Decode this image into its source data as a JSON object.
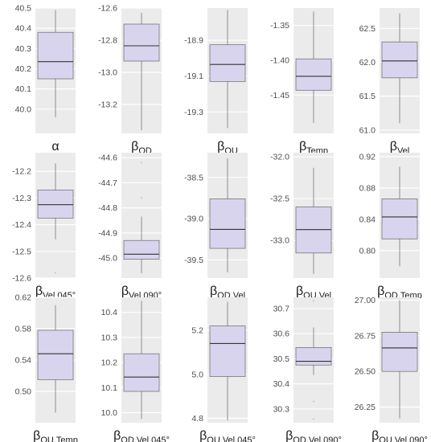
{
  "style": {
    "panel_bg": "#ebebeb",
    "grid_color": "#ffffff",
    "box_fill": "#d9d4ee",
    "box_stroke": "#666666",
    "whisker": "#777777",
    "tick_text": "#4d4d4d",
    "label_text": "#1a1a1a"
  },
  "chart_data": [
    {
      "type": "box",
      "label_main": "α",
      "label_sub": "",
      "ylim": [
        39.88,
        40.5
      ],
      "ticks": [
        40.0,
        40.1,
        40.2,
        40.3,
        40.4,
        40.5
      ],
      "tick_labels": [
        "40.0",
        "40.1",
        "40.2",
        "40.3",
        "40.4",
        "40.5"
      ],
      "stats": {
        "min": 39.96,
        "q1": 40.15,
        "median": 40.235,
        "q3": 40.38,
        "max": 40.49
      }
    },
    {
      "type": "box",
      "label_main": "β",
      "label_sub": "OD",
      "ylim": [
        -13.38,
        -12.6
      ],
      "ticks": [
        -13.2,
        -13.0,
        -12.8,
        -12.6
      ],
      "tick_labels": [
        "-13.2",
        "-13.0",
        "-12.8",
        "-12.6"
      ],
      "stats": {
        "min": -13.36,
        "q1": -12.93,
        "median": -12.835,
        "q3": -12.7,
        "max": -12.63
      }
    },
    {
      "type": "box",
      "label_main": "β",
      "label_sub": "OU",
      "ylim": [
        -19.42,
        -18.72
      ],
      "ticks": [
        -19.3,
        -19.1,
        -18.9
      ],
      "tick_labels": [
        "-19.3",
        "-19.1",
        "-18.9"
      ],
      "stats": {
        "min": -19.39,
        "q1": -19.13,
        "median": -19.035,
        "q3": -18.925,
        "max": -18.73
      }
    },
    {
      "type": "box",
      "label_main": "β",
      "label_sub": "Temp",
      "ylim": [
        -1.505,
        -1.325
      ],
      "ticks": [
        -1.45,
        -1.4,
        -1.35
      ],
      "tick_labels": [
        "-1.45",
        "-1.40",
        "-1.35"
      ],
      "stats": {
        "min": -1.49,
        "q1": -1.443,
        "median": -1.423,
        "q3": -1.398,
        "max": -1.33
      }
    },
    {
      "type": "box",
      "label_main": "β",
      "label_sub": "Vel",
      "ylim": [
        60.95,
        62.8
      ],
      "ticks": [
        61.0,
        61.5,
        62.0,
        62.5
      ],
      "tick_labels": [
        "61.0",
        "61.5",
        "62.0",
        "62.5"
      ],
      "stats": {
        "min": 61.1,
        "q1": 61.77,
        "median": 62.02,
        "q3": 62.3,
        "max": 62.72
      }
    },
    {
      "type": "box",
      "label_main": "β",
      "label_sub": "Vel.045°",
      "ylim": [
        -12.6,
        -12.13
      ],
      "ticks": [
        -12.6,
        -12.5,
        -12.4,
        -12.3,
        -12.2
      ],
      "tick_labels": [
        "-12.6",
        "-12.5",
        "-12.4",
        "-12.3",
        "-12.2"
      ],
      "stats": {
        "min": -12.455,
        "q1": -12.375,
        "median": -12.325,
        "q3": -12.27,
        "max": -12.17
      },
      "outliers": [
        -12.58
      ]
    },
    {
      "type": "box",
      "label_main": "β",
      "label_sub": "Vel.090°",
      "ylim": [
        -45.08,
        -44.58
      ],
      "ticks": [
        -45.0,
        -44.9,
        -44.8,
        -44.7,
        -44.6
      ],
      "tick_labels": [
        "-45.0",
        "-44.9",
        "-44.8",
        "-44.7",
        "-44.6"
      ],
      "stats": {
        "min": -45.06,
        "q1": -45.005,
        "median": -44.985,
        "q3": -44.93,
        "max": -44.835
      },
      "outliers": [
        -44.76,
        -44.62
      ]
    },
    {
      "type": "box",
      "label_main": "β",
      "label_sub": "OD.Vel",
      "ylim": [
        -39.72,
        -38.2
      ],
      "ticks": [
        -39.5,
        -39.0,
        -38.5
      ],
      "tick_labels": [
        "-39.5",
        "-39.0",
        "-38.5"
      ],
      "stats": {
        "min": -39.65,
        "q1": -39.36,
        "median": -39.13,
        "q3": -38.76,
        "max": -38.27
      }
    },
    {
      "type": "box",
      "label_main": "β",
      "label_sub": "OU.Vel",
      "ylim": [
        -33.45,
        -31.95
      ],
      "ticks": [
        -33.0,
        -32.5,
        -32.0
      ],
      "tick_labels": [
        "-33.0",
        "-32.5",
        "-32.0"
      ],
      "stats": {
        "min": -33.4,
        "q1": -33.15,
        "median": -32.87,
        "q3": -32.6,
        "max": -32.13
      }
    },
    {
      "type": "box",
      "label_main": "β",
      "label_sub": "OD.Temp",
      "ylim": [
        0.765,
        0.925
      ],
      "ticks": [
        0.8,
        0.84,
        0.88,
        0.92
      ],
      "tick_labels": [
        "0.80",
        "0.84",
        "0.88",
        "0.92"
      ],
      "stats": {
        "min": 0.78,
        "q1": 0.815,
        "median": 0.843,
        "q3": 0.866,
        "max": 0.907
      }
    },
    {
      "type": "box",
      "label_main": "β",
      "label_sub": "OU.Temp",
      "ylim": [
        0.46,
        0.62
      ],
      "ticks": [
        0.5,
        0.54,
        0.58,
        0.62
      ],
      "tick_labels": [
        "0.50",
        "0.54",
        "0.58",
        "0.62"
      ],
      "stats": {
        "min": 0.473,
        "q1": 0.515,
        "median": 0.548,
        "q3": 0.578,
        "max": 0.61
      }
    },
    {
      "type": "box",
      "label_main": "β",
      "label_sub": "OD.Vel.045°",
      "ylim": [
        9.96,
        10.46
      ],
      "ticks": [
        10.0,
        10.1,
        10.2,
        10.3,
        10.4
      ],
      "tick_labels": [
        "10.0",
        "10.1",
        "10.2",
        "10.3",
        "10.4"
      ],
      "stats": {
        "min": 9.975,
        "q1": 10.085,
        "median": 10.142,
        "q3": 10.235,
        "max": 10.445
      }
    },
    {
      "type": "box",
      "label_main": "β",
      "label_sub": "OU.Vel.045°",
      "ylim": [
        4.78,
        5.35
      ],
      "ticks": [
        4.8,
        5.0,
        5.2
      ],
      "tick_labels": [
        "4.8",
        "5.0",
        "5.2"
      ],
      "stats": {
        "min": 4.79,
        "q1": 4.99,
        "median": 5.14,
        "q3": 5.22,
        "max": 5.33
      }
    },
    {
      "type": "box",
      "label_main": "β",
      "label_sub": "OD.Vel.090°",
      "ylim": [
        30.245,
        30.745
      ],
      "ticks": [
        30.3,
        30.4,
        30.5,
        30.6,
        30.7
      ],
      "tick_labels": [
        "30.3",
        "30.4",
        "30.5",
        "30.6",
        "30.7"
      ],
      "stats": {
        "min": 30.435,
        "q1": 30.475,
        "median": 30.49,
        "q3": 30.545,
        "max": 30.625
      },
      "outliers": [
        30.26,
        30.33,
        30.73
      ]
    },
    {
      "type": "box",
      "label_main": "β",
      "label_sub": "OU.Vel.090°",
      "ylim": [
        26.14,
        27.02
      ],
      "ticks": [
        26.25,
        26.5,
        26.75,
        27.0
      ],
      "tick_labels": [
        "26.25",
        "26.50",
        "26.75",
        "27.00"
      ],
      "stats": {
        "min": 26.17,
        "q1": 26.5,
        "median": 26.665,
        "q3": 26.775,
        "max": 27.0
      }
    }
  ]
}
